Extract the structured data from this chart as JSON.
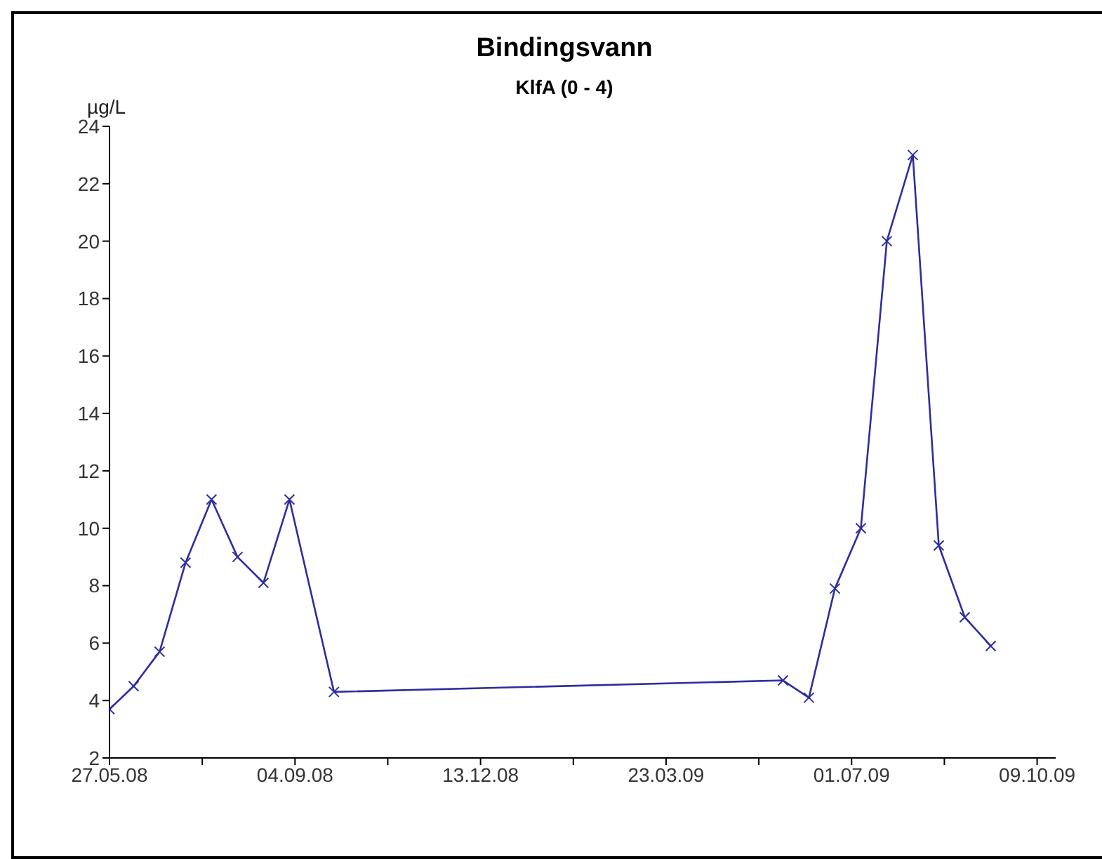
{
  "chart_data": {
    "type": "line",
    "title": "Bindingsvann",
    "subtitle": "KlfA (0 - 4)",
    "ylabel": "µg/L",
    "x": [
      "2008-05-27",
      "2008-06-09",
      "2008-06-23",
      "2008-07-07",
      "2008-07-21",
      "2008-08-04",
      "2008-08-18",
      "2008-09-01",
      "2008-09-25",
      "2009-05-25",
      "2009-06-08",
      "2009-06-22",
      "2009-07-06",
      "2009-07-20",
      "2009-08-03",
      "2009-08-17",
      "2009-08-31",
      "2009-09-14"
    ],
    "series": [
      {
        "color": "#2e2e9e",
        "values": [
          3.7,
          4.5,
          5.7,
          8.8,
          11.0,
          9.0,
          8.1,
          11.0,
          4.3,
          4.7,
          4.1,
          7.9,
          10.0,
          20.0,
          23.0,
          9.4,
          6.9,
          5.9
        ]
      }
    ],
    "xlim": [
      "2008-05-27",
      "2009-10-19"
    ],
    "xticks": [
      {
        "value": "2008-05-27",
        "label": "27.05.08"
      },
      {
        "value": "2008-07-16",
        "label": null
      },
      {
        "value": "2008-09-04",
        "label": "04.09.08"
      },
      {
        "value": "2008-10-24",
        "label": null
      },
      {
        "value": "2008-12-13",
        "label": "13.12.08"
      },
      {
        "value": "2009-02-01",
        "label": null
      },
      {
        "value": "2009-03-23",
        "label": "23.03.09"
      },
      {
        "value": "2009-05-12",
        "label": null
      },
      {
        "value": "2009-07-01",
        "label": "01.07.09"
      },
      {
        "value": "2009-08-20",
        "label": null
      },
      {
        "value": "2009-10-09",
        "label": "09.10.09"
      }
    ],
    "ylim": [
      2,
      24
    ],
    "yticks": [
      2,
      4,
      6,
      8,
      10,
      12,
      14,
      16,
      18,
      20,
      22,
      24
    ],
    "marker": "cross",
    "line_style": "solid",
    "grid": false,
    "legend": false
  }
}
